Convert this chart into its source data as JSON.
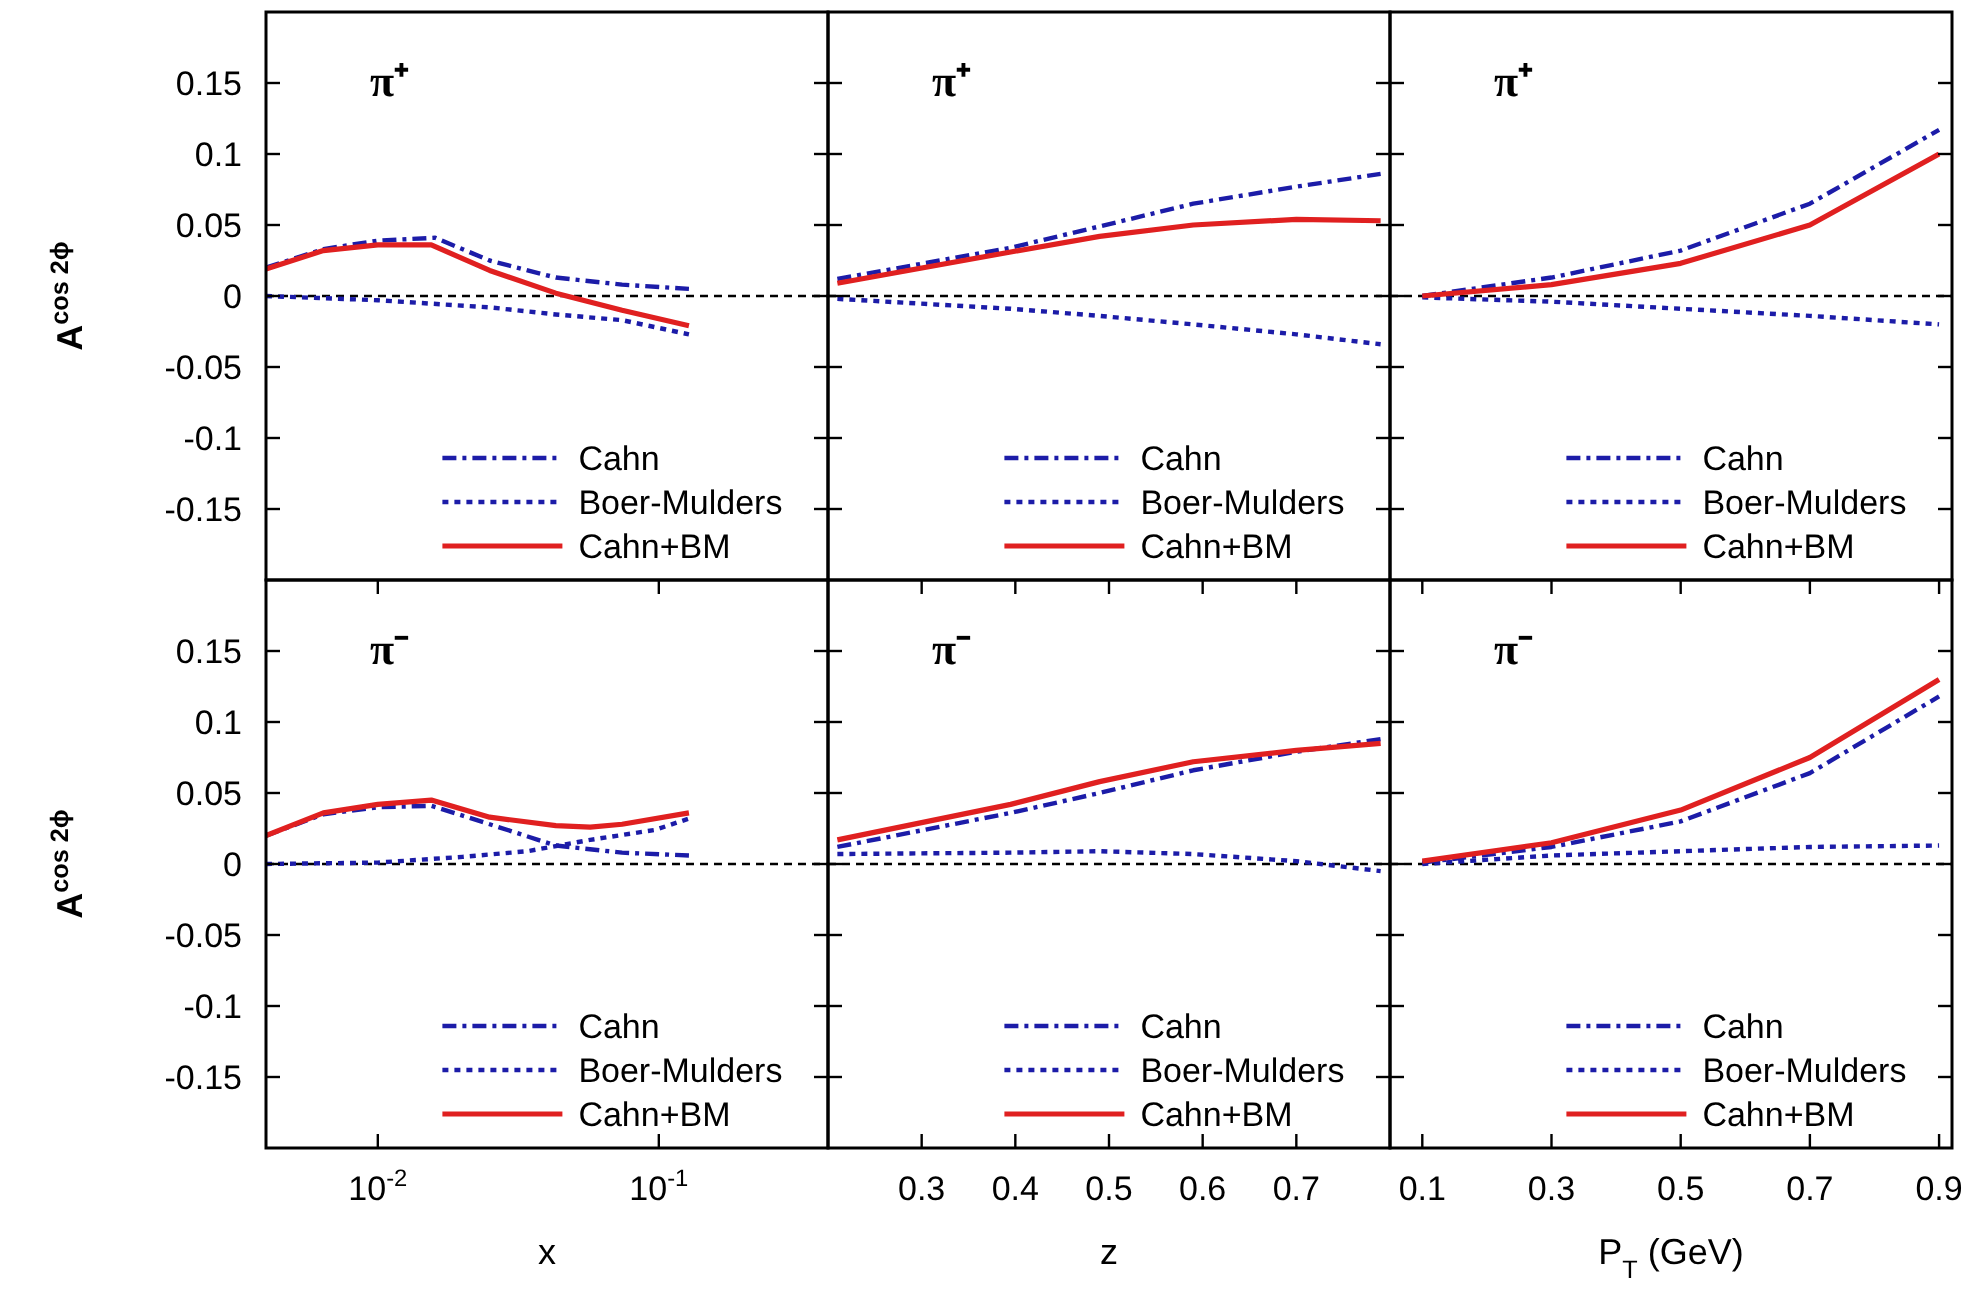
{
  "chart_data": [
    {
      "type": "line",
      "ylabel": "A$^{cos 2ϕ}$",
      "annotations": [
        "π⁺"
      ],
      "log": "x",
      "xlim": [
        0.004,
        0.4
      ],
      "ylim": [
        -0.2,
        0.2
      ],
      "yticks": [
        -0.15,
        -0.1,
        -0.05,
        0,
        0.05,
        0.1,
        0.15
      ],
      "tick_labels": "y",
      "legend": "bottom right",
      "grid": false,
      "ref_lines": [
        {
          "axis": "y",
          "value": 0,
          "color": "#000000",
          "line_style": "dashed"
        }
      ],
      "series": [
        {
          "name": "Cahn",
          "color": "#1c1ca8",
          "line_style": "dashed",
          "x": [
            0.004,
            0.0064,
            0.01,
            0.016,
            0.025,
            0.043,
            0.074,
            0.128
          ],
          "values": [
            0.02,
            0.033,
            0.039,
            0.041,
            0.025,
            0.013,
            0.008,
            0.005
          ]
        },
        {
          "name": "Boer-Mulders",
          "color": "#1c1ca8",
          "line_style": "dotted",
          "x": [
            0.004,
            0.01,
            0.025,
            0.043,
            0.074,
            0.128
          ],
          "values": [
            0,
            -0.003,
            -0.008,
            -0.013,
            -0.017,
            -0.027
          ]
        },
        {
          "name": "Cahn+BM",
          "color": "#e02020",
          "line_style": "solid",
          "x": [
            0.004,
            0.0064,
            0.01,
            0.0155,
            0.025,
            0.043,
            0.074,
            0.128
          ],
          "values": [
            0.019,
            0.032,
            0.036,
            0.036,
            0.018,
            0.002,
            -0.01,
            -0.021
          ]
        }
      ]
    },
    {
      "type": "line",
      "annotations": [
        "π⁺"
      ],
      "xlim": [
        0.2,
        0.8
      ],
      "ylim": [
        -0.2,
        0.2
      ],
      "yticks": [
        -0.15,
        -0.1,
        -0.05,
        0,
        0.05,
        0.1,
        0.15
      ],
      "tick_labels": false,
      "legend": "bottom right",
      "grid": false,
      "ref_lines": [
        {
          "axis": "y",
          "value": 0,
          "color": "#000000",
          "line_style": "dashed"
        }
      ],
      "series": [
        {
          "name": "Cahn",
          "color": "#1c1ca8",
          "line_style": "dashed",
          "x": [
            0.21,
            0.395,
            0.49,
            0.59,
            0.7,
            0.79
          ],
          "values": [
            0.012,
            0.034,
            0.049,
            0.065,
            0.077,
            0.086
          ]
        },
        {
          "name": "Boer-Mulders",
          "color": "#1c1ca8",
          "line_style": "dotted",
          "x": [
            0.21,
            0.395,
            0.49,
            0.59,
            0.7,
            0.79
          ],
          "values": [
            -0.002,
            -0.009,
            -0.014,
            -0.02,
            -0.027,
            -0.034
          ]
        },
        {
          "name": "Cahn+BM",
          "color": "#e02020",
          "line_style": "solid",
          "x": [
            0.21,
            0.395,
            0.49,
            0.59,
            0.7,
            0.79
          ],
          "values": [
            0.009,
            0.031,
            0.042,
            0.05,
            0.054,
            0.053
          ]
        }
      ]
    },
    {
      "type": "line",
      "annotations": [
        "π⁺"
      ],
      "xlim": [
        0.05,
        0.92
      ],
      "ylim": [
        -0.2,
        0.2
      ],
      "yticks": [
        -0.15,
        -0.1,
        -0.05,
        0,
        0.05,
        0.1,
        0.15
      ],
      "tick_labels": false,
      "legend": "bottom right",
      "grid": false,
      "ref_lines": [
        {
          "axis": "y",
          "value": 0,
          "color": "#000000",
          "line_style": "dashed"
        }
      ],
      "series": [
        {
          "name": "Cahn",
          "color": "#1c1ca8",
          "line_style": "dashed",
          "x": [
            0.1,
            0.3,
            0.5,
            0.7,
            0.9
          ],
          "values": [
            0,
            0.013,
            0.032,
            0.065,
            0.117
          ]
        },
        {
          "name": "Boer-Mulders",
          "color": "#1c1ca8",
          "line_style": "dotted",
          "x": [
            0.1,
            0.3,
            0.5,
            0.7,
            0.9
          ],
          "values": [
            -0.001,
            -0.004,
            -0.009,
            -0.014,
            -0.02
          ]
        },
        {
          "name": "Cahn+BM",
          "color": "#e02020",
          "line_style": "solid",
          "x": [
            0.1,
            0.3,
            0.5,
            0.7,
            0.9
          ],
          "values": [
            0,
            0.008,
            0.023,
            0.05,
            0.1
          ]
        }
      ]
    },
    {
      "type": "line",
      "xlabel": "x",
      "ylabel": "A$^{cos 2ϕ}$",
      "annotations": [
        "π⁻"
      ],
      "log": "x",
      "xlim": [
        0.004,
        0.4
      ],
      "xticks": [
        {
          "value": 0.01,
          "label": "10$^{-2}$"
        },
        {
          "value": 0.1,
          "label": "10$^{-1}$"
        }
      ],
      "ylim": [
        -0.2,
        0.2
      ],
      "yticks": [
        -0.15,
        -0.1,
        -0.05,
        0,
        0.05,
        0.1,
        0.15
      ],
      "legend": "bottom right",
      "grid": false,
      "ref_lines": [
        {
          "axis": "y",
          "value": 0,
          "color": "#000000",
          "line_style": "dashed"
        }
      ],
      "series": [
        {
          "name": "Cahn",
          "color": "#1c1ca8",
          "line_style": "dashed",
          "x": [
            0.004,
            0.0064,
            0.01,
            0.0155,
            0.025,
            0.043,
            0.074,
            0.128
          ],
          "values": [
            0.02,
            0.035,
            0.04,
            0.041,
            0.028,
            0.013,
            0.008,
            0.006
          ]
        },
        {
          "name": "Boer-Mulders",
          "color": "#1c1ca8",
          "line_style": "dotted",
          "x": [
            0.004,
            0.01,
            0.02,
            0.034,
            0.057,
            0.097,
            0.128
          ],
          "values": [
            0,
            0.001,
            0.005,
            0.009,
            0.017,
            0.024,
            0.032
          ]
        },
        {
          "name": "Cahn+BM",
          "color": "#e02020",
          "line_style": "solid",
          "x": [
            0.004,
            0.0064,
            0.01,
            0.0155,
            0.025,
            0.043,
            0.057,
            0.074,
            0.128
          ],
          "values": [
            0.02,
            0.036,
            0.042,
            0.045,
            0.033,
            0.027,
            0.026,
            0.028,
            0.036
          ]
        }
      ]
    },
    {
      "type": "line",
      "xlabel": "z",
      "annotations": [
        "π⁻"
      ],
      "xlim": [
        0.2,
        0.8
      ],
      "xticks": [
        0.3,
        0.4,
        0.5,
        0.6,
        0.7
      ],
      "ylim": [
        -0.2,
        0.2
      ],
      "yticks": [
        -0.15,
        -0.1,
        -0.05,
        0,
        0.05,
        0.1,
        0.15
      ],
      "tick_labels": "x",
      "legend": "bottom right",
      "grid": false,
      "ref_lines": [
        {
          "axis": "y",
          "value": 0,
          "color": "#000000",
          "line_style": "dashed"
        }
      ],
      "series": [
        {
          "name": "Cahn",
          "color": "#1c1ca8",
          "line_style": "dashed",
          "x": [
            0.21,
            0.395,
            0.49,
            0.59,
            0.7,
            0.79
          ],
          "values": [
            0.012,
            0.036,
            0.05,
            0.066,
            0.079,
            0.088
          ]
        },
        {
          "name": "Boer-Mulders",
          "color": "#1c1ca8",
          "line_style": "dotted",
          "x": [
            0.21,
            0.395,
            0.49,
            0.59,
            0.7,
            0.79
          ],
          "values": [
            0.007,
            0.008,
            0.009,
            0.007,
            0.002,
            -0.005
          ]
        },
        {
          "name": "Cahn+BM",
          "color": "#e02020",
          "line_style": "solid",
          "x": [
            0.21,
            0.395,
            0.49,
            0.59,
            0.7,
            0.79
          ],
          "values": [
            0.017,
            0.042,
            0.058,
            0.072,
            0.08,
            0.085
          ]
        }
      ]
    },
    {
      "type": "line",
      "xlabel": "P$_{T}$ (GeV)",
      "annotations": [
        "π⁻"
      ],
      "xlim": [
        0.05,
        0.92
      ],
      "xticks": [
        0.1,
        0.3,
        0.5,
        0.7,
        0.9
      ],
      "ylim": [
        -0.2,
        0.2
      ],
      "yticks": [
        -0.15,
        -0.1,
        -0.05,
        0,
        0.05,
        0.1,
        0.15
      ],
      "tick_labels": "x",
      "legend": "bottom right",
      "grid": false,
      "ref_lines": [
        {
          "axis": "y",
          "value": 0,
          "color": "#000000",
          "line_style": "dashed"
        }
      ],
      "series": [
        {
          "name": "Cahn",
          "color": "#1c1ca8",
          "line_style": "dashed",
          "x": [
            0.1,
            0.3,
            0.5,
            0.7,
            0.9
          ],
          "values": [
            0.001,
            0.012,
            0.03,
            0.064,
            0.118
          ]
        },
        {
          "name": "Boer-Mulders",
          "color": "#1c1ca8",
          "line_style": "dotted",
          "x": [
            0.1,
            0.3,
            0.5,
            0.7,
            0.9
          ],
          "values": [
            0,
            0.006,
            0.009,
            0.012,
            0.013
          ]
        },
        {
          "name": "Cahn+BM",
          "color": "#e02020",
          "line_style": "solid",
          "x": [
            0.1,
            0.3,
            0.5,
            0.7,
            0.9
          ],
          "values": [
            0.002,
            0.015,
            0.038,
            0.075,
            0.13
          ]
        }
      ]
    }
  ]
}
